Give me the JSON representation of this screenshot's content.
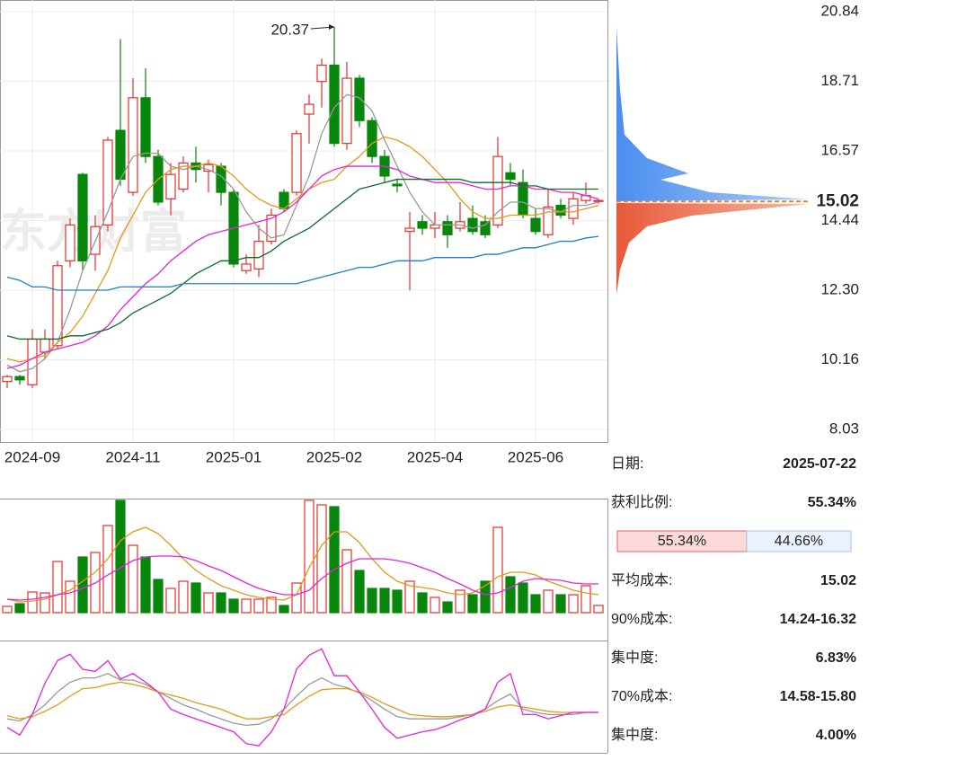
{
  "chart_data": {
    "type": "candlestick",
    "watermark": "东方财富",
    "annotation": "20.37",
    "categories": [
      null,
      null,
      "2024-09",
      null,
      null,
      null,
      null,
      null,
      null,
      null,
      "2024-11",
      null,
      null,
      null,
      null,
      null,
      null,
      null,
      "2025-01",
      null,
      null,
      null,
      null,
      null,
      null,
      null,
      "2025-02",
      null,
      null,
      null,
      null,
      null,
      null,
      null,
      "2025-04",
      null,
      null,
      null,
      null,
      null,
      null,
      null,
      "2025-06",
      null,
      null,
      null,
      null,
      null
    ],
    "open": [
      9.5,
      9.65,
      9.4,
      10.4,
      10.6,
      13.2,
      15.85,
      13.4,
      14.3,
      17.2,
      15.3,
      18.2,
      16.4,
      15.1,
      15.4,
      16.2,
      15.95,
      16.1,
      15.3,
      12.9,
      12.95,
      13.8,
      15.3,
      15.3,
      17.7,
      18.7,
      19.2,
      16.8,
      18.8,
      17.5,
      16.4,
      15.55,
      14.1,
      14.4,
      14.2,
      14.4,
      14.2,
      14.5,
      14.4,
      14.3,
      15.9,
      15.6,
      14.5,
      14.0,
      14.9,
      14.5,
      15.05,
      15.02
    ],
    "high": [
      9.7,
      9.7,
      11.1,
      11.1,
      13.2,
      14.5,
      15.9,
      14.6,
      17.0,
      20.0,
      18.8,
      19.1,
      16.6,
      16.2,
      16.4,
      16.7,
      16.3,
      16.2,
      15.4,
      13.4,
      14.3,
      14.8,
      15.4,
      17.2,
      18.3,
      19.4,
      20.37,
      19.3,
      18.9,
      17.6,
      16.6,
      15.7,
      14.7,
      14.6,
      14.7,
      14.6,
      15.0,
      14.9,
      14.6,
      17.0,
      16.2,
      16.0,
      14.8,
      15.4,
      15.1,
      15.3,
      15.6,
      15.1
    ],
    "low": [
      9.3,
      9.4,
      9.3,
      10.2,
      10.5,
      13.0,
      12.9,
      12.9,
      14.1,
      15.5,
      15.2,
      16.2,
      14.9,
      14.6,
      15.3,
      15.6,
      15.3,
      14.9,
      13.0,
      12.8,
      12.7,
      13.7,
      14.7,
      15.2,
      16.8,
      17.9,
      16.7,
      16.6,
      17.3,
      16.2,
      15.6,
      15.3,
      12.3,
      14.0,
      13.9,
      13.6,
      14.1,
      14.0,
      13.9,
      14.2,
      15.5,
      14.5,
      14.0,
      13.9,
      14.5,
      14.3,
      14.95,
      14.95
    ],
    "close": [
      9.65,
      9.55,
      10.8,
      10.8,
      13.05,
      14.3,
      13.2,
      14.25,
      16.9,
      15.7,
      18.2,
      16.4,
      15.0,
      15.85,
      16.2,
      16.0,
      16.15,
      15.3,
      13.1,
      13.1,
      13.8,
      14.6,
      14.8,
      17.1,
      18.0,
      19.2,
      16.8,
      18.8,
      17.5,
      16.4,
      15.8,
      15.5,
      14.2,
      14.2,
      14.3,
      14.0,
      14.4,
      14.1,
      14.0,
      16.4,
      15.7,
      14.6,
      14.1,
      14.85,
      14.6,
      15.1,
      15.2,
      15.05
    ],
    "up_color": "#e3302c",
    "down_color": "#07870b",
    "ylim": [
      8.03,
      20.84
    ],
    "yticks": [
      20.84,
      18.71,
      16.57,
      14.44,
      {
        "value": 12.3,
        "label": "12.30"
      },
      10.16,
      8.03
    ],
    "grid": true,
    "last_price": 15.02,
    "last_price_color": "#f07f2a",
    "series": [
      {
        "color": "#999999",
        "values": [
          10.0,
          9.8,
          9.9,
          10.2,
          10.7,
          11.7,
          12.9,
          13.8,
          14.7,
          15.7,
          16.4,
          16.5,
          16.5,
          16.1,
          16.0,
          16.1,
          16.0,
          15.8,
          15.4,
          14.7,
          14.2,
          13.9,
          14.0,
          14.9,
          15.8,
          17.1,
          17.9,
          18.3,
          18.2,
          17.8,
          16.9,
          16.1,
          15.3,
          14.7,
          14.3,
          14.3,
          14.3,
          14.2,
          14.3,
          14.7,
          15.0,
          15.0,
          14.8,
          14.8,
          14.7,
          14.9,
          14.9,
          15.0
        ]
      },
      {
        "color": "#e09a17",
        "values": [
          10.2,
          10.1,
          10.2,
          10.3,
          10.7,
          11.0,
          11.5,
          12.2,
          12.9,
          13.9,
          14.6,
          15.3,
          15.7,
          16.0,
          16.1,
          16.1,
          16.2,
          16.1,
          15.8,
          15.4,
          15.1,
          14.9,
          14.8,
          15.1,
          15.4,
          15.6,
          15.7,
          16.1,
          16.4,
          16.8,
          17.0,
          16.9,
          16.7,
          16.4,
          16.0,
          15.6,
          15.1,
          14.7,
          14.5,
          14.5,
          14.6,
          14.6,
          14.6,
          14.7,
          14.7,
          14.7,
          14.8,
          14.9
        ]
      },
      {
        "color": "#e624d8",
        "values": [
          9.9,
          10.0,
          10.2,
          10.4,
          10.5,
          10.6,
          10.7,
          10.9,
          11.2,
          11.7,
          12.1,
          12.5,
          12.8,
          13.2,
          13.5,
          13.8,
          14.0,
          14.1,
          14.2,
          14.3,
          14.4,
          14.5,
          14.7,
          15.0,
          15.4,
          15.8,
          16.0,
          16.1,
          16.1,
          16.1,
          16.1,
          16.0,
          15.8,
          15.7,
          15.6,
          15.6,
          15.6,
          15.5,
          15.4,
          15.4,
          15.5,
          15.5,
          15.4,
          15.4,
          15.3,
          15.3,
          15.2,
          15.1
        ]
      },
      {
        "color": "#0e6b2a",
        "values": [
          10.9,
          10.8,
          10.8,
          10.8,
          10.8,
          10.9,
          10.9,
          11.0,
          11.1,
          11.3,
          11.6,
          11.8,
          12.0,
          12.2,
          12.5,
          12.8,
          13.0,
          13.2,
          13.2,
          13.3,
          13.3,
          13.5,
          13.8,
          14.0,
          14.2,
          14.5,
          14.8,
          15.1,
          15.4,
          15.5,
          15.6,
          15.7,
          15.7,
          15.7,
          15.7,
          15.7,
          15.7,
          15.6,
          15.6,
          15.6,
          15.6,
          15.5,
          15.5,
          15.4,
          15.4,
          15.4,
          15.4,
          15.4
        ]
      },
      {
        "color": "#1f7fc4",
        "values": [
          12.7,
          12.6,
          12.4,
          12.4,
          12.3,
          12.3,
          12.3,
          12.3,
          12.3,
          12.4,
          12.4,
          12.4,
          12.4,
          12.4,
          12.5,
          12.5,
          12.5,
          12.5,
          12.5,
          12.5,
          12.5,
          12.5,
          12.5,
          12.5,
          12.6,
          12.7,
          12.8,
          12.9,
          13.0,
          13.0,
          13.1,
          13.2,
          13.2,
          13.2,
          13.3,
          13.3,
          13.3,
          13.3,
          13.4,
          13.4,
          13.5,
          13.6,
          13.6,
          13.7,
          13.8,
          13.8,
          13.9,
          13.95
        ]
      }
    ],
    "volume": {
      "ylim": [
        0,
        125
      ],
      "values": [
        7,
        10,
        23,
        22,
        57,
        35,
        62,
        67,
        97,
        125,
        75,
        62,
        37,
        27,
        35,
        33,
        22,
        22,
        15,
        15,
        15,
        17,
        8,
        33,
        125,
        120,
        118,
        70,
        47,
        27,
        27,
        25,
        35,
        22,
        17,
        12,
        25,
        20,
        35,
        95,
        40,
        33,
        20,
        25,
        20,
        20,
        30,
        8
      ],
      "series": [
        {
          "color": "#e09a17",
          "values": [
            15,
            12,
            13,
            15,
            20,
            25,
            35,
            45,
            60,
            80,
            90,
            95,
            88,
            75,
            60,
            47,
            38,
            30,
            25,
            20,
            17,
            15,
            14,
            20,
            50,
            75,
            90,
            90,
            78,
            60,
            45,
            35,
            30,
            28,
            26,
            22,
            20,
            22,
            30,
            40,
            45,
            45,
            42,
            35,
            30,
            25,
            22,
            20
          ]
        },
        {
          "color": "#e624d8",
          "values": [
            15,
            14,
            15,
            17,
            20,
            22,
            27,
            33,
            42,
            50,
            58,
            62,
            63,
            63,
            62,
            58,
            52,
            47,
            40,
            33,
            27,
            23,
            20,
            20,
            25,
            38,
            48,
            55,
            60,
            60,
            60,
            58,
            55,
            50,
            45,
            38,
            32,
            25,
            20,
            22,
            28,
            35,
            38,
            37,
            36,
            33,
            32,
            32
          ]
        }
      ]
    },
    "kdj": {
      "ylim": [
        0,
        100
      ],
      "series": [
        {
          "color": "#999999",
          "values": [
            29,
            27,
            33,
            42,
            54,
            63,
            67,
            67,
            71,
            65,
            65,
            61,
            54,
            48,
            42,
            38,
            33,
            29,
            25,
            23,
            24,
            29,
            38,
            50,
            61,
            67,
            61,
            58,
            53,
            46,
            38,
            31,
            29,
            29,
            29,
            29,
            31,
            33,
            38,
            46,
            52,
            38,
            35,
            33,
            33,
            33,
            35,
            35
          ]
        },
        {
          "color": "#e09a17",
          "values": [
            32,
            29,
            31,
            36,
            42,
            50,
            57,
            58,
            61,
            63,
            61,
            58,
            54,
            51,
            48,
            44,
            41,
            38,
            33,
            29,
            29,
            31,
            33,
            42,
            50,
            56,
            57,
            57,
            54,
            49,
            43,
            38,
            33,
            32,
            31,
            31,
            32,
            33,
            36,
            40,
            42,
            40,
            38,
            36,
            35,
            35,
            35,
            35
          ]
        },
        {
          "color": "#e624d8",
          "values": [
            21,
            14,
            33,
            62,
            83,
            89,
            75,
            73,
            83,
            66,
            71,
            63,
            54,
            38,
            33,
            29,
            25,
            21,
            17,
            6,
            4,
            17,
            38,
            75,
            88,
            94,
            69,
            69,
            54,
            38,
            21,
            11,
            14,
            17,
            19,
            23,
            28,
            32,
            38,
            63,
            71,
            33,
            33,
            29,
            32,
            35,
            35,
            35
          ]
        }
      ]
    }
  },
  "chip": {
    "rows": [
      {
        "label": "日期:",
        "value": "2025-07-22"
      },
      {
        "label": "获利比例:",
        "value": "55.34%"
      },
      {
        "label": "平均成本:",
        "value": "15.02"
      },
      {
        "label": "90%成本:",
        "value": "14.24-16.32"
      },
      {
        "label": "集中度:",
        "value": "6.83%"
      },
      {
        "label": "70%成本:",
        "value": "14.58-15.80"
      },
      {
        "label": "集中度:",
        "value": "4.00%"
      }
    ],
    "profit_bar": [
      {
        "value": 55.34,
        "label": "55.34%"
      },
      {
        "value": 44.66,
        "label": "44.66%"
      }
    ]
  }
}
